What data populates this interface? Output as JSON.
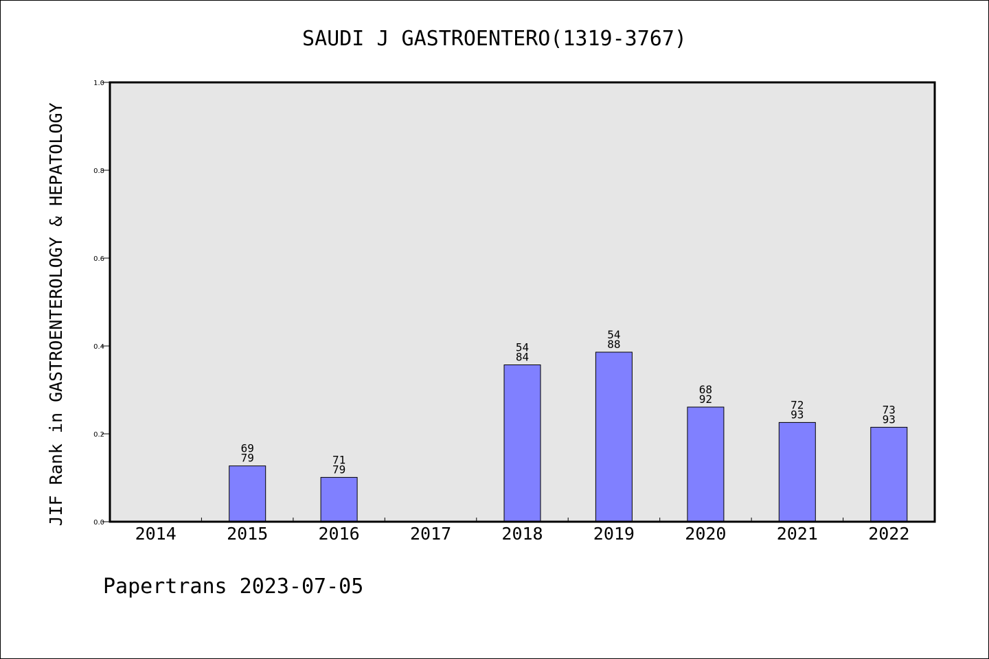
{
  "chart_data": {
    "type": "bar",
    "title": "SAUDI J GASTROENTERO(1319-3767)",
    "ylabel": "JIF Rank in GASTROENTEROLOGY & HEPATOLOGY",
    "xlabel": "",
    "ylim": [
      0,
      1.0
    ],
    "yticks": [
      "0.0",
      "0.2",
      "0.4",
      "0.6",
      "0.8",
      "1.0"
    ],
    "categories": [
      "2014",
      "2015",
      "2016",
      "2017",
      "2018",
      "2019",
      "2020",
      "2021",
      "2022"
    ],
    "values": [
      null,
      0.127,
      0.101,
      null,
      0.357,
      0.386,
      0.261,
      0.226,
      0.215
    ],
    "rank": [
      null,
      "69",
      "71",
      null,
      "54",
      "54",
      "68",
      "72",
      "73"
    ],
    "total": [
      null,
      "79",
      "79",
      null,
      "84",
      "88",
      "92",
      "93",
      "93"
    ],
    "grid": false,
    "colors": {
      "bar": "#8080ff",
      "plot_bg": "#e6e6e6"
    }
  },
  "footer": "Papertrans 2023-07-05"
}
